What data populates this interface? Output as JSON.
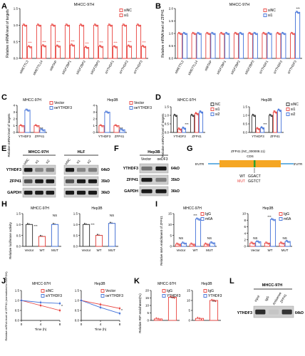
{
  "colors": {
    "red": "#e8413c",
    "blue": "#3f6fd8",
    "dark": "#333333",
    "gray": "#aaaaaa",
    "gene_bar": "#f5a623",
    "cds_line": "#3a9ad9",
    "band": "#1a1a1a"
  },
  "panels": {
    "A": {
      "letter": "A",
      "title": "MHCC-97H",
      "ylabel": "Relative mRNA level of targets",
      "legend": [
        "siNC",
        "si1"
      ],
      "categories": [
        "siMETTL3",
        "siMETTL14",
        "siWTAP",
        "siIGF2BP1",
        "siIGF2BP2",
        "siIGF2BP3",
        "siYTHDF1",
        "siYTHDF2",
        "siYTHDF3"
      ],
      "yticks": [
        "0.0",
        "0.5",
        "1.0",
        "1.5"
      ],
      "sig": "***"
    },
    "B": {
      "letter": "B",
      "title": "MHCC-97H",
      "ylabel": "Relative mRNA level of ZFP41",
      "legend": [
        "siNC",
        "si1"
      ],
      "categories": [
        "siMETTL3",
        "siMETTL14",
        "siWTAP",
        "siIGF2BP1",
        "siIGF2BP2",
        "siIGF2BP3",
        "siYTHDF1",
        "siYTHDF2",
        "siYTHDF3"
      ],
      "yticks": [
        "0.0",
        "0.5",
        "1.0",
        "1.5",
        "2.0"
      ],
      "sig": "***"
    },
    "C": {
      "letter": "C",
      "ylabel": "Relative mRNA level of targets",
      "left": {
        "title": "MHCC-97H",
        "legend": [
          "Vector",
          "oeYTHDF3"
        ],
        "categories": [
          "YTHDF3",
          "ZFP41"
        ],
        "yticks": [
          "0",
          "1",
          "2",
          "3",
          "4"
        ],
        "sig": "***"
      },
      "right": {
        "title": "Hep3B",
        "legend": [
          "Vector",
          "oeYTHDF3"
        ],
        "categories": [
          "YTHDF3",
          "ZFP41"
        ],
        "yticks": [
          "0",
          "1",
          "2",
          "3",
          "4"
        ],
        "sig": "***"
      }
    },
    "D": {
      "letter": "D",
      "ylabel": "Relative mRNA level of targets",
      "left": {
        "title": "MHCC-97H",
        "legend": [
          "NC",
          "si1",
          "si2"
        ],
        "categories": [
          "YTHDF3",
          "ZFP41"
        ],
        "yticks": [
          "0.0",
          "0.5",
          "1.0",
          "1.5"
        ],
        "sig": "***"
      },
      "right": {
        "title": "Hep3B",
        "legend": [
          "siNC",
          "si1",
          "si2"
        ],
        "categories": [
          "YTHDF3",
          "ZFP41"
        ],
        "yticks": [
          "0.0",
          "0.5",
          "1.0",
          "1.5"
        ],
        "sig": "***"
      }
    },
    "E": {
      "letter": "E",
      "cell1": "MHCC-97H",
      "cell2": "HLF",
      "lanes": [
        "siNC",
        "si1",
        "si2"
      ],
      "rows": [
        "YTHDF3",
        "ZFP41",
        "GAPDH"
      ],
      "sizes": [
        "64kD",
        "35kD",
        "36kD"
      ]
    },
    "F": {
      "letter": "F",
      "cell": "Hep3B",
      "lanes": [
        "Vector",
        "oeDF3"
      ],
      "rows": [
        "YTHDF3",
        "ZFP41",
        "GAPDH"
      ],
      "sizes": [
        "64kD",
        "35kD",
        "36kD"
      ]
    },
    "G": {
      "letter": "G",
      "title": "ZFP41 (NC_000008.11)",
      "utr5": "5'UTR",
      "utr3": "3'UTR",
      "cds": "CDS",
      "wt": "WT",
      "mut": "MUT",
      "wt_seq": "GGACT",
      "mut_seq": "GGTCT"
    },
    "H": {
      "letter": "H",
      "ylabel": "Relative luciferase activity",
      "categories": [
        "Vector",
        "WT",
        "MUT"
      ],
      "yticks": [
        "0.0",
        "0.5",
        "1.0",
        "1.5"
      ],
      "left": {
        "title": "MHCC-97H",
        "sig": "***",
        "ns": "NS"
      },
      "right": {
        "title": "Hep3B",
        "sig": "***",
        "ns": "NS"
      }
    },
    "I": {
      "letter": "I",
      "ylabel": "Relative m6A enrichment of ZFP41",
      "categories": [
        "Vector",
        "WT",
        "MUT"
      ],
      "legend": [
        "IgG",
        "m6A"
      ],
      "ns": "NS",
      "sig": "***",
      "left": {
        "title": "MHCC-97H",
        "yticks": [
          "0",
          "5",
          "10",
          "15"
        ]
      },
      "right": {
        "title": "Hep3B",
        "yticks": [
          "0",
          "2",
          "4",
          "6",
          "8",
          "10"
        ]
      }
    },
    "J": {
      "letter": "J",
      "ylabel": "Relative mRNA level of ZFP41 (normalized to GAPDH)",
      "xlabel": "Time (h)",
      "xticks": [
        "0",
        "4",
        "8"
      ],
      "yticks": [
        "0.0",
        "0.5",
        "1.0",
        "1.5"
      ],
      "left": {
        "title": "MHCC-97H",
        "legend": [
          "siNC",
          "siYTHDF3"
        ],
        "sig": "*"
      },
      "right": {
        "title": "Hep3B",
        "legend": [
          "Vector",
          "oeYTHDF3"
        ],
        "sig": "*"
      }
    },
    "K": {
      "letter": "K",
      "ylabel": "Relative RIP enrichment(%)",
      "legend": [
        "IgG",
        "YTHDF3"
      ],
      "sig": "***",
      "left": {
        "title": "MHCC-97H",
        "yticks": [
          "0",
          "5",
          "10",
          "15",
          "20"
        ]
      },
      "right": {
        "title": "Hep3B",
        "yticks": [
          "0",
          "5",
          "10",
          "15"
        ]
      }
    },
    "L": {
      "letter": "L",
      "title": "MHCC-97H",
      "lanes": [
        "input",
        "IgG",
        "Antisense",
        "ZFP41"
      ],
      "row": "YTHDF3",
      "size": "64kD"
    }
  },
  "chart_data": [
    {
      "type": "bar",
      "panel": "A",
      "title": "MHCC-97H",
      "ylabel": "Relative mRNA level of targets",
      "ylim": [
        0,
        1.5
      ],
      "categories": [
        "siMETTL3",
        "siMETTL14",
        "siWTAP",
        "siIGF2BP1",
        "siIGF2BP2",
        "siIGF2BP3",
        "siYTHDF1",
        "siYTHDF2",
        "siYTHDF3"
      ],
      "series": [
        {
          "name": "siNC",
          "values": [
            1,
            1,
            1,
            1,
            1,
            1,
            1,
            1,
            1
          ]
        },
        {
          "name": "si1",
          "values": [
            0.35,
            0.38,
            0.37,
            0.4,
            0.33,
            0.36,
            0.35,
            0.37,
            0.36
          ]
        }
      ]
    },
    {
      "type": "bar",
      "panel": "B",
      "title": "MHCC-97H",
      "ylabel": "Relative mRNA level of ZFP41",
      "ylim": [
        0,
        2.0
      ],
      "categories": [
        "siMETTL3",
        "siMETTL14",
        "siWTAP",
        "siIGF2BP1",
        "siIGF2BP2",
        "siIGF2BP3",
        "siYTHDF1",
        "siYTHDF2",
        "siYTHDF3"
      ],
      "series": [
        {
          "name": "siNC",
          "values": [
            1,
            1,
            1,
            1,
            1,
            1,
            1,
            1,
            1
          ]
        },
        {
          "name": "si1",
          "values": [
            1,
            1,
            1,
            1,
            1,
            1,
            1,
            1,
            1.85
          ]
        }
      ]
    },
    {
      "type": "bar",
      "panel": "C-left",
      "title": "MHCC-97H",
      "ylim": [
        0,
        4
      ],
      "categories": [
        "YTHDF3",
        "ZFP41"
      ],
      "series": [
        {
          "name": "Vector",
          "values": [
            1,
            1
          ]
        },
        {
          "name": "oeYTHDF3",
          "values": [
            3.3,
            0.4
          ]
        }
      ]
    },
    {
      "type": "bar",
      "panel": "C-right",
      "title": "Hep3B",
      "ylim": [
        0,
        4
      ],
      "categories": [
        "YTHDF3",
        "ZFP41"
      ],
      "series": [
        {
          "name": "Vector",
          "values": [
            1,
            1
          ]
        },
        {
          "name": "oeYTHDF3",
          "values": [
            3.0,
            0.4
          ]
        }
      ]
    },
    {
      "type": "bar",
      "panel": "D-left",
      "title": "MHCC-97H",
      "ylim": [
        0,
        1.5
      ],
      "categories": [
        "YTHDF3",
        "ZFP41"
      ],
      "series": [
        {
          "name": "NC",
          "values": [
            1,
            1
          ]
        },
        {
          "name": "si1",
          "values": [
            0.2,
            1.1
          ]
        },
        {
          "name": "si2",
          "values": [
            0.25,
            1.2
          ]
        }
      ]
    },
    {
      "type": "bar",
      "panel": "D-right",
      "title": "Hep3B",
      "ylim": [
        0,
        1.5
      ],
      "categories": [
        "YTHDF3",
        "ZFP41"
      ],
      "series": [
        {
          "name": "siNC",
          "values": [
            1,
            1
          ]
        },
        {
          "name": "si1",
          "values": [
            0.22,
            1.2
          ]
        },
        {
          "name": "si2",
          "values": [
            0.27,
            1.3
          ]
        }
      ]
    },
    {
      "type": "bar",
      "panel": "H-left",
      "title": "MHCC-97H",
      "ylim": [
        0,
        1.5
      ],
      "categories": [
        "Vector",
        "WT",
        "MUT"
      ],
      "series": [
        {
          "values": [
            1,
            0.45,
            1.0
          ]
        }
      ]
    },
    {
      "type": "bar",
      "panel": "H-right",
      "title": "Hep3B",
      "ylim": [
        0,
        1.5
      ],
      "categories": [
        "Vector",
        "WT",
        "MUT"
      ],
      "series": [
        {
          "values": [
            1,
            0.5,
            1.05
          ]
        }
      ]
    },
    {
      "type": "bar",
      "panel": "I-left",
      "title": "MHCC-97H",
      "ylim": [
        0,
        15
      ],
      "categories": [
        "Vector",
        "WT",
        "MUT"
      ],
      "series": [
        {
          "name": "IgG",
          "values": [
            1,
            1,
            1
          ]
        },
        {
          "name": "m6A",
          "values": [
            1.5,
            12.5,
            1.6
          ]
        }
      ]
    },
    {
      "type": "bar",
      "panel": "I-right",
      "title": "Hep3B",
      "ylim": [
        0,
        10
      ],
      "categories": [
        "Vector",
        "WT",
        "MUT"
      ],
      "series": [
        {
          "name": "IgG",
          "values": [
            1,
            1,
            1
          ]
        },
        {
          "name": "m6A",
          "values": [
            1.4,
            8.2,
            1.5
          ]
        }
      ]
    },
    {
      "type": "line",
      "panel": "J-left",
      "title": "MHCC-97H",
      "xlabel": "Time (h)",
      "ylim": [
        0,
        1.5
      ],
      "x": [
        0,
        4,
        8
      ],
      "series": [
        {
          "name": "siNC",
          "values": [
            1.0,
            0.75,
            0.5
          ]
        },
        {
          "name": "siYTHDF3",
          "values": [
            1.0,
            0.9,
            0.85
          ]
        }
      ]
    },
    {
      "type": "line",
      "panel": "J-right",
      "title": "Hep3B",
      "xlabel": "Time (h)",
      "ylim": [
        0,
        1.5
      ],
      "x": [
        0,
        4,
        8
      ],
      "series": [
        {
          "name": "Vector",
          "values": [
            1.0,
            0.8,
            0.6
          ]
        },
        {
          "name": "oeYTHDF3",
          "values": [
            1.0,
            0.65,
            0.35
          ]
        }
      ]
    },
    {
      "type": "bar",
      "panel": "K-left",
      "title": "MHCC-97H",
      "ylim": [
        0,
        20
      ],
      "categories": [
        "IgG",
        "YTHDF3"
      ],
      "series": [
        {
          "values": [
            1,
            15.5
          ]
        }
      ]
    },
    {
      "type": "bar",
      "panel": "K-right",
      "title": "Hep3B",
      "ylim": [
        0,
        15
      ],
      "categories": [
        "IgG",
        "YTHDF3"
      ],
      "series": [
        {
          "values": [
            1,
            10
          ]
        }
      ]
    }
  ]
}
